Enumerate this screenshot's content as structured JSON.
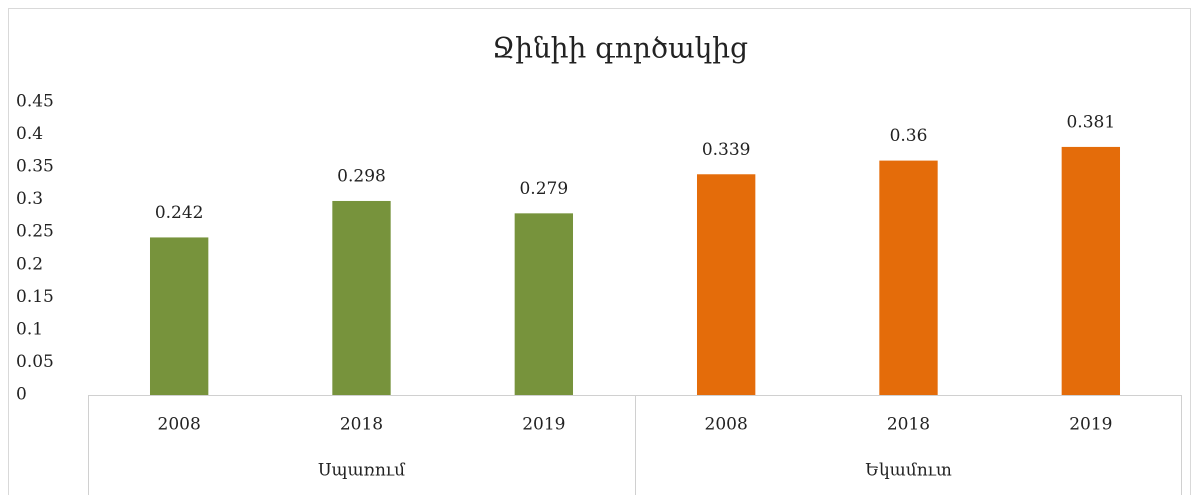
{
  "chart_data": {
    "type": "bar",
    "title": "Ջինիի գործակից",
    "groups": [
      {
        "name": "Սպառում",
        "color": "#77933c",
        "categories": [
          "2008",
          "2018",
          "2019"
        ],
        "values": [
          0.242,
          0.298,
          0.279
        ]
      },
      {
        "name": "Եկամուտ",
        "color": "#e46c0a",
        "categories": [
          "2008",
          "2018",
          "2019"
        ],
        "values": [
          0.339,
          0.36,
          0.381
        ]
      }
    ],
    "ylim": [
      0,
      0.45
    ],
    "yticks": [
      0,
      0.05,
      0.1,
      0.15,
      0.2,
      0.25,
      0.3,
      0.35,
      0.4,
      0.45
    ],
    "grid": false,
    "data_labels": true
  }
}
